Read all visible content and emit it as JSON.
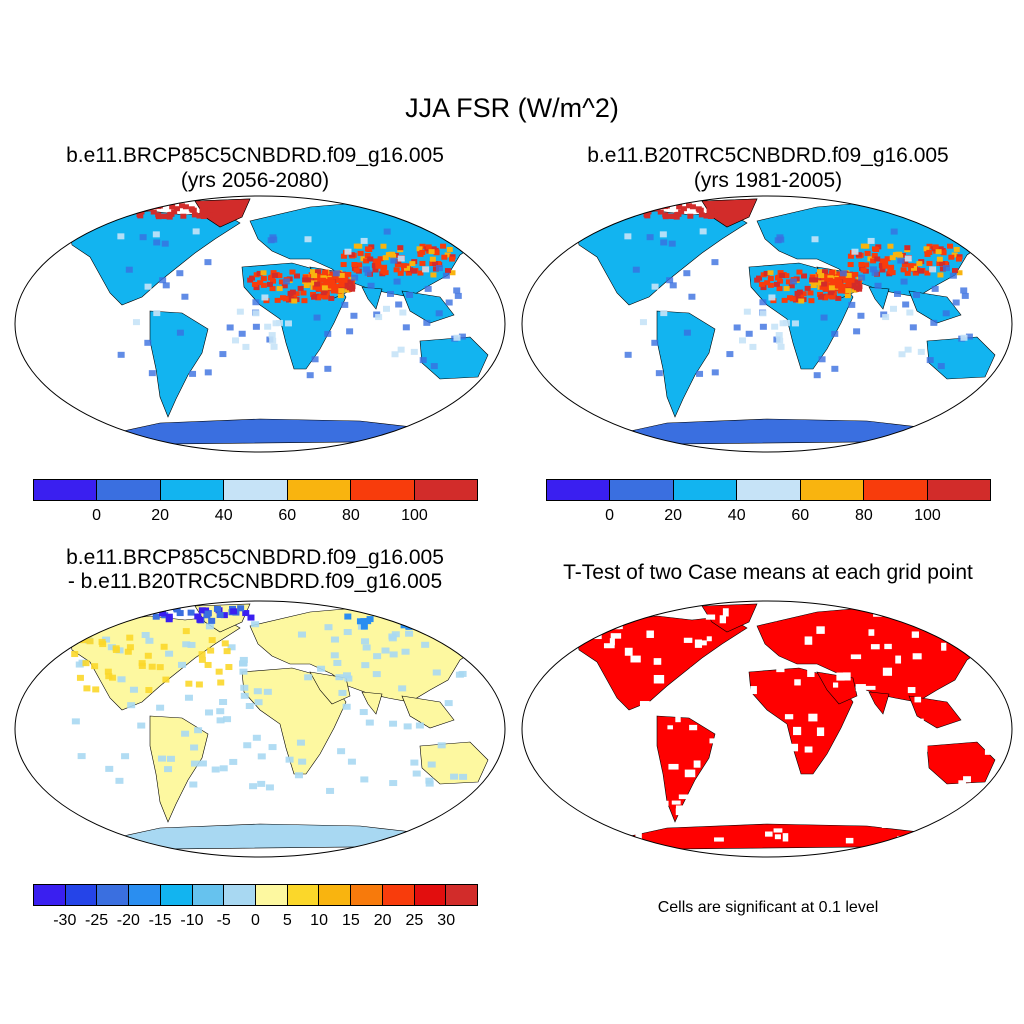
{
  "main_title": "JJA FSR (W/m^2)",
  "panels": [
    {
      "title_line1": "b.e11.BRCP85C5CNBDRD.f09_g16.005",
      "title_line2": "(yrs 2056-2080)"
    },
    {
      "title_line1": "b.e11.B20TRC5CNBDRD.f09_g16.005",
      "title_line2": "(yrs 1981-2005)"
    },
    {
      "title_line1": "b.e11.BRCP85C5CNBDRD.f09_g16.005",
      "title_line2": "- b.e11.B20TRC5CNBDRD.f09_g16.005"
    },
    {
      "title_line1": "T-Test of two Case means at each grid point"
    }
  ],
  "colorbar_abs": {
    "colors": [
      "#3a1ff0",
      "#3a6fe0",
      "#12b4f0",
      "#c6e3f7",
      "#f9b40f",
      "#f83c0c",
      "#d22c2a"
    ],
    "ticks": [
      "0",
      "20",
      "40",
      "60",
      "80",
      "100"
    ]
  },
  "colorbar_diff": {
    "colors": [
      "#3a1ff0",
      "#2544e8",
      "#3a6fe0",
      "#2a8ef0",
      "#12b4f0",
      "#66c2ee",
      "#a8d8f2",
      "#fdf8a0",
      "#fbd72a",
      "#f9b40f",
      "#f77a0c",
      "#f83c0c",
      "#e20e0e",
      "#d22c2a"
    ],
    "ticks": [
      "-30",
      "-25",
      "-20",
      "-15",
      "-10",
      "-5",
      "0",
      "5",
      "10",
      "15",
      "20",
      "25",
      "30"
    ]
  },
  "significance_note": "Cells are significant at 0.1 level",
  "colors": {
    "significant": "#ff0000",
    "ocean": "#ffffff",
    "antarctica_abs": "#3a6fe0",
    "antarctica_diff": "#a8d8f2"
  }
}
